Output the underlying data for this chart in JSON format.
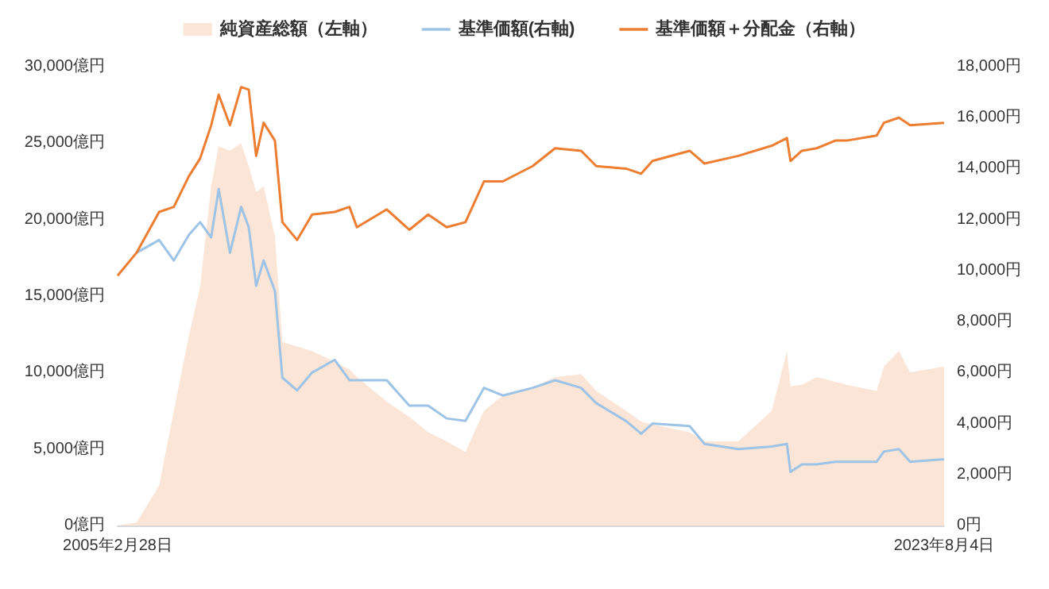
{
  "chart_data": {
    "type": "line",
    "legend": "top",
    "marker": "none",
    "line_style": "solid",
    "grid": false,
    "x": [
      "2005-02-28",
      "2005-08",
      "2006-02",
      "2006-06",
      "2006-10",
      "2007-01",
      "2007-04",
      "2007-06",
      "2007-09",
      "2007-12",
      "2008-02",
      "2008-04",
      "2008-06",
      "2008-09",
      "2008-11",
      "2009-03",
      "2009-07",
      "2010-01",
      "2010-05",
      "2010-07",
      "2011-03",
      "2011-09",
      "2012-02",
      "2012-07",
      "2012-12",
      "2013-05",
      "2013-10",
      "2014-06",
      "2014-12",
      "2015-07",
      "2015-11",
      "2016-07",
      "2016-11",
      "2017-02",
      "2017-12",
      "2018-04",
      "2019-01",
      "2019-10",
      "2020-02",
      "2020-03",
      "2020-06",
      "2020-10",
      "2021-03",
      "2021-06",
      "2022-02",
      "2022-04",
      "2022-08",
      "2022-11",
      "2023-08-04"
    ],
    "xlim": [
      "2005-02-28",
      "2023-08-04"
    ],
    "xticks": [
      {
        "value": "2005-02-28",
        "label": "2005年2月28日"
      },
      {
        "value": "2023-08-04",
        "label": "2023年8月4日"
      }
    ],
    "ylim": [
      0,
      30000
    ],
    "yticks": [
      {
        "value": 0,
        "label": "0億円"
      },
      {
        "value": 5000,
        "label": "5,000億円"
      },
      {
        "value": 10000,
        "label": "10,000億円"
      },
      {
        "value": 15000,
        "label": "15,000億円"
      },
      {
        "value": 20000,
        "label": "20,000億円"
      },
      {
        "value": 25000,
        "label": "25,000億円"
      },
      {
        "value": 30000,
        "label": "30,000億円"
      }
    ],
    "y2lim": [
      0,
      18000
    ],
    "y2ticks": [
      {
        "value": 0,
        "label": "0円"
      },
      {
        "value": 2000,
        "label": "2,000円"
      },
      {
        "value": 4000,
        "label": "4,000円"
      },
      {
        "value": 6000,
        "label": "6,000円"
      },
      {
        "value": 8000,
        "label": "8,000円"
      },
      {
        "value": 10000,
        "label": "10,000円"
      },
      {
        "value": 12000,
        "label": "12,000円"
      },
      {
        "value": 14000,
        "label": "14,000円"
      },
      {
        "value": 16000,
        "label": "16,000円"
      },
      {
        "value": 18000,
        "label": "18,000円"
      }
    ],
    "series": [
      {
        "name": "純資産総額（左軸）",
        "type": "area",
        "color": "#fbe5d6",
        "values": [
          0,
          200,
          2600,
          7500,
          12400,
          15600,
          22200,
          24800,
          24500,
          25000,
          23500,
          21800,
          22200,
          18900,
          12000,
          11700,
          11400,
          10700,
          10200,
          9700,
          8100,
          7100,
          6100,
          5500,
          4800,
          7500,
          8500,
          9000,
          9700,
          9900,
          8800,
          7500,
          6800,
          6600,
          6100,
          5500,
          5500,
          7500,
          11400,
          9100,
          9200,
          9700,
          9400,
          9200,
          8800,
          10400,
          11400,
          10000,
          10400
        ]
      },
      {
        "name": "基準価額(右軸)",
        "axis": "y2",
        "color": "#9dc3e6",
        "values": [
          null,
          10700,
          11200,
          10400,
          11400,
          11900,
          11300,
          13200,
          10700,
          12500,
          11700,
          9400,
          10400,
          9200,
          5800,
          5300,
          6000,
          6500,
          5700,
          5700,
          5700,
          4700,
          4700,
          4200,
          4100,
          5400,
          5100,
          5400,
          5700,
          5400,
          4800,
          4100,
          3600,
          4000,
          3900,
          3200,
          3000,
          3100,
          3200,
          2100,
          2400,
          2400,
          2500,
          2500,
          2500,
          2900,
          3000,
          2500,
          2600
        ]
      },
      {
        "name": "基準価額＋分配金（右軸）",
        "axis": "y2",
        "color": "#ed7d31",
        "values": [
          9800,
          10700,
          12300,
          12500,
          13700,
          14400,
          15700,
          16900,
          15700,
          17200,
          17100,
          14500,
          15800,
          15100,
          11900,
          11200,
          12200,
          12300,
          12500,
          11700,
          12400,
          11600,
          12200,
          11700,
          11900,
          13500,
          13500,
          14100,
          14800,
          14700,
          14100,
          14000,
          13800,
          14300,
          14700,
          14200,
          14500,
          14900,
          15200,
          14300,
          14700,
          14800,
          15100,
          15100,
          15300,
          15800,
          16000,
          15700,
          15800
        ]
      }
    ]
  }
}
